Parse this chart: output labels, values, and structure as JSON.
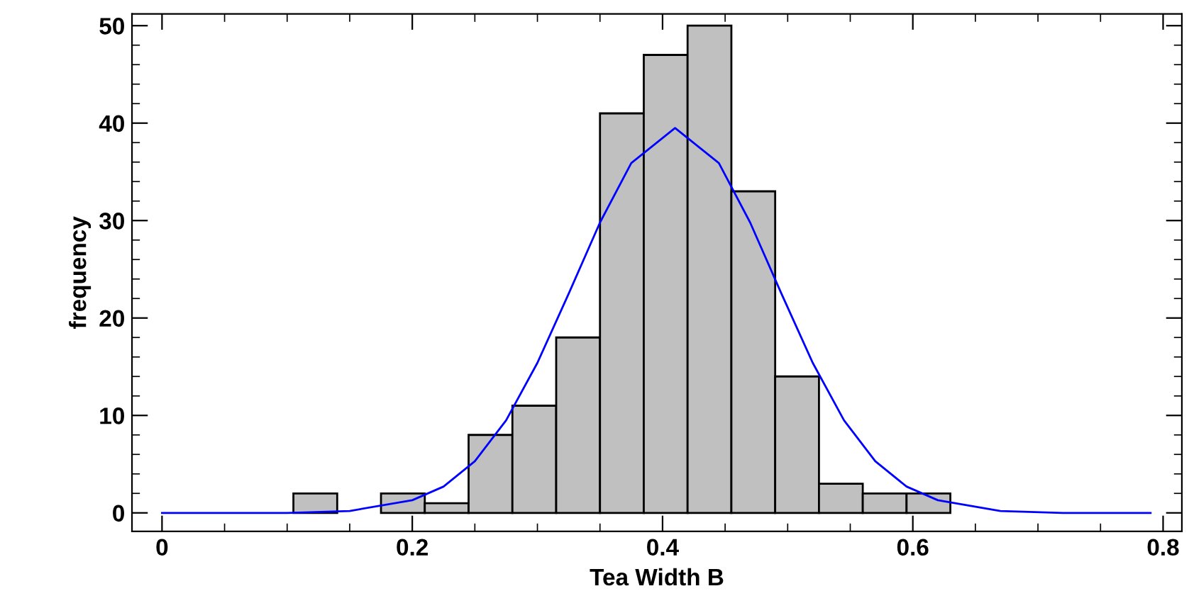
{
  "chart_data": {
    "type": "histogram",
    "xlabel": "Tea Width B",
    "ylabel": "frequency",
    "bins": [
      0.105,
      0.14,
      0.175,
      0.21,
      0.245,
      0.28,
      0.315,
      0.35,
      0.385,
      0.42,
      0.455,
      0.49,
      0.525,
      0.56,
      0.595,
      0.63
    ],
    "values": [
      2,
      0,
      2,
      1,
      8,
      11,
      18,
      41,
      47,
      50,
      33,
      14,
      3,
      2,
      2
    ],
    "color": "#c0c0c0",
    "series": [
      {
        "type": "line",
        "color": "#0000ff",
        "x": [
          0,
          0.1,
          0.15,
          0.2,
          0.225,
          0.25,
          0.275,
          0.3,
          0.325,
          0.35,
          0.375,
          0.41,
          0.445,
          0.47,
          0.495,
          0.52,
          0.545,
          0.57,
          0.595,
          0.62,
          0.67,
          0.72,
          0.79
        ],
        "values": [
          0,
          0,
          0.2,
          1.3,
          2.7,
          5.3,
          9.5,
          15.4,
          22.5,
          29.8,
          35.9,
          39.5,
          35.9,
          29.8,
          22.5,
          15.4,
          9.5,
          5.3,
          2.7,
          1.3,
          0.2,
          0,
          0
        ]
      }
    ],
    "xlim": [
      -0.024,
      0.815
    ],
    "ylim": [
      -1.9,
      51.2
    ],
    "xticks": [
      0,
      0.2,
      0.4,
      0.6,
      0.8
    ],
    "yticks": [
      0,
      10,
      20,
      30,
      40,
      50
    ],
    "grid": false,
    "legend": false
  }
}
